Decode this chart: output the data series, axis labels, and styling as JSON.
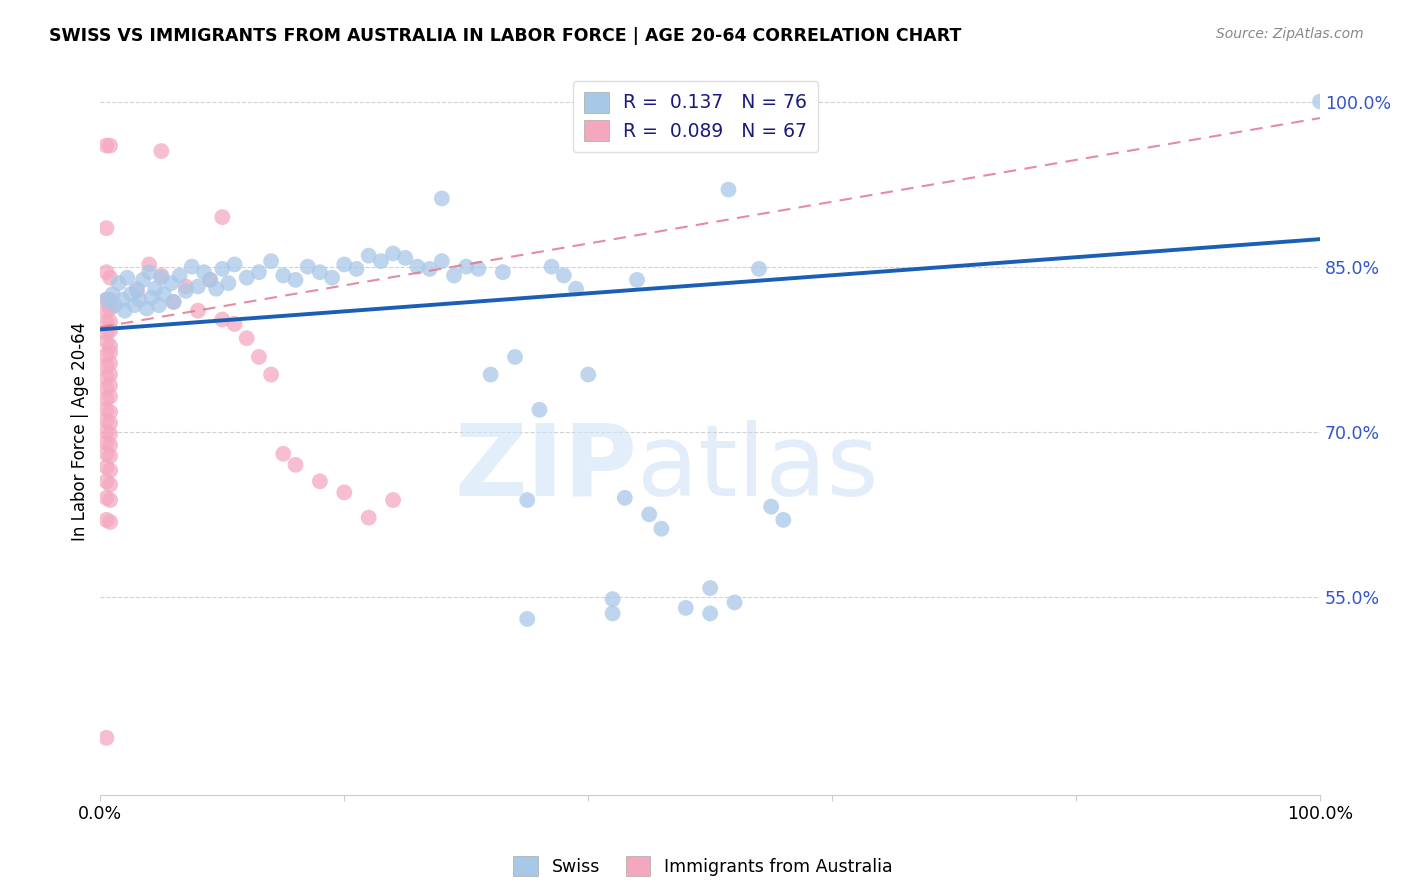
{
  "title": "SWISS VS IMMIGRANTS FROM AUSTRALIA IN LABOR FORCE | AGE 20-64 CORRELATION CHART",
  "source": "Source: ZipAtlas.com",
  "ylabel": "In Labor Force | Age 20-64",
  "xmin": 0.0,
  "xmax": 1.0,
  "ymin": 0.37,
  "ymax": 1.03,
  "ytick_vals": [
    0.55,
    0.7,
    0.85,
    1.0
  ],
  "ytick_labels": [
    "55.0%",
    "70.0%",
    "85.0%",
    "100.0%"
  ],
  "blue_color": "#a8c8e8",
  "pink_color": "#f4a8be",
  "trendline_blue": "#1a5fb4",
  "trendline_pink": "#e07890",
  "legend_R_blue": "0.137",
  "legend_N_blue": "76",
  "legend_R_pink": "0.089",
  "legend_N_pink": "67",
  "blue_trend_x0": 0.0,
  "blue_trend_y0": 0.793,
  "blue_trend_x1": 1.0,
  "blue_trend_y1": 0.875,
  "pink_trend_x0": 0.0,
  "pink_trend_y0": 0.795,
  "pink_trend_x1": 1.0,
  "pink_trend_y1": 0.985,
  "blue_scatter": [
    [
      0.005,
      0.82
    ],
    [
      0.01,
      0.825
    ],
    [
      0.012,
      0.815
    ],
    [
      0.015,
      0.835
    ],
    [
      0.018,
      0.82
    ],
    [
      0.02,
      0.81
    ],
    [
      0.022,
      0.84
    ],
    [
      0.025,
      0.825
    ],
    [
      0.028,
      0.815
    ],
    [
      0.03,
      0.83
    ],
    [
      0.032,
      0.82
    ],
    [
      0.035,
      0.838
    ],
    [
      0.038,
      0.812
    ],
    [
      0.04,
      0.845
    ],
    [
      0.042,
      0.822
    ],
    [
      0.045,
      0.83
    ],
    [
      0.048,
      0.815
    ],
    [
      0.05,
      0.84
    ],
    [
      0.052,
      0.825
    ],
    [
      0.058,
      0.835
    ],
    [
      0.06,
      0.818
    ],
    [
      0.065,
      0.842
    ],
    [
      0.07,
      0.828
    ],
    [
      0.075,
      0.85
    ],
    [
      0.08,
      0.832
    ],
    [
      0.085,
      0.845
    ],
    [
      0.09,
      0.838
    ],
    [
      0.095,
      0.83
    ],
    [
      0.1,
      0.848
    ],
    [
      0.105,
      0.835
    ],
    [
      0.11,
      0.852
    ],
    [
      0.12,
      0.84
    ],
    [
      0.13,
      0.845
    ],
    [
      0.14,
      0.855
    ],
    [
      0.15,
      0.842
    ],
    [
      0.16,
      0.838
    ],
    [
      0.17,
      0.85
    ],
    [
      0.18,
      0.845
    ],
    [
      0.19,
      0.84
    ],
    [
      0.2,
      0.852
    ],
    [
      0.21,
      0.848
    ],
    [
      0.22,
      0.86
    ],
    [
      0.23,
      0.855
    ],
    [
      0.24,
      0.862
    ],
    [
      0.25,
      0.858
    ],
    [
      0.26,
      0.85
    ],
    [
      0.27,
      0.848
    ],
    [
      0.28,
      0.855
    ],
    [
      0.29,
      0.842
    ],
    [
      0.3,
      0.85
    ],
    [
      0.31,
      0.848
    ],
    [
      0.32,
      0.752
    ],
    [
      0.33,
      0.845
    ],
    [
      0.34,
      0.768
    ],
    [
      0.35,
      0.638
    ],
    [
      0.36,
      0.72
    ],
    [
      0.37,
      0.85
    ],
    [
      0.38,
      0.842
    ],
    [
      0.39,
      0.83
    ],
    [
      0.4,
      0.752
    ],
    [
      0.42,
      0.548
    ],
    [
      0.43,
      0.64
    ],
    [
      0.44,
      0.838
    ],
    [
      0.45,
      0.625
    ],
    [
      0.46,
      0.612
    ],
    [
      0.48,
      0.54
    ],
    [
      0.5,
      0.558
    ],
    [
      0.515,
      0.92
    ],
    [
      0.54,
      0.848
    ],
    [
      0.55,
      0.632
    ],
    [
      0.56,
      0.62
    ],
    [
      0.5,
      0.535
    ],
    [
      0.35,
      0.53
    ],
    [
      0.42,
      0.535
    ],
    [
      0.52,
      0.545
    ],
    [
      1.0,
      1.0
    ],
    [
      0.28,
      0.912
    ]
  ],
  "pink_scatter": [
    [
      0.005,
      0.96
    ],
    [
      0.008,
      0.96
    ],
    [
      0.005,
      0.885
    ],
    [
      0.005,
      0.845
    ],
    [
      0.008,
      0.84
    ],
    [
      0.005,
      0.82
    ],
    [
      0.008,
      0.82
    ],
    [
      0.005,
      0.81
    ],
    [
      0.008,
      0.812
    ],
    [
      0.005,
      0.8
    ],
    [
      0.008,
      0.8
    ],
    [
      0.005,
      0.79
    ],
    [
      0.008,
      0.792
    ],
    [
      0.005,
      0.782
    ],
    [
      0.008,
      0.778
    ],
    [
      0.005,
      0.77
    ],
    [
      0.008,
      0.772
    ],
    [
      0.005,
      0.76
    ],
    [
      0.008,
      0.762
    ],
    [
      0.005,
      0.75
    ],
    [
      0.008,
      0.752
    ],
    [
      0.005,
      0.74
    ],
    [
      0.008,
      0.742
    ],
    [
      0.005,
      0.73
    ],
    [
      0.008,
      0.732
    ],
    [
      0.005,
      0.72
    ],
    [
      0.008,
      0.718
    ],
    [
      0.005,
      0.71
    ],
    [
      0.008,
      0.708
    ],
    [
      0.005,
      0.7
    ],
    [
      0.008,
      0.698
    ],
    [
      0.005,
      0.69
    ],
    [
      0.008,
      0.688
    ],
    [
      0.005,
      0.68
    ],
    [
      0.008,
      0.678
    ],
    [
      0.005,
      0.668
    ],
    [
      0.008,
      0.665
    ],
    [
      0.005,
      0.655
    ],
    [
      0.008,
      0.652
    ],
    [
      0.005,
      0.64
    ],
    [
      0.008,
      0.638
    ],
    [
      0.005,
      0.62
    ],
    [
      0.008,
      0.618
    ],
    [
      0.005,
      0.422
    ],
    [
      0.03,
      0.828
    ],
    [
      0.04,
      0.852
    ],
    [
      0.05,
      0.842
    ],
    [
      0.06,
      0.818
    ],
    [
      0.07,
      0.832
    ],
    [
      0.08,
      0.81
    ],
    [
      0.09,
      0.838
    ],
    [
      0.1,
      0.802
    ],
    [
      0.11,
      0.798
    ],
    [
      0.12,
      0.785
    ],
    [
      0.13,
      0.768
    ],
    [
      0.14,
      0.752
    ],
    [
      0.15,
      0.68
    ],
    [
      0.16,
      0.67
    ],
    [
      0.18,
      0.655
    ],
    [
      0.2,
      0.645
    ],
    [
      0.22,
      0.622
    ],
    [
      0.24,
      0.638
    ],
    [
      0.05,
      0.955
    ],
    [
      0.1,
      0.895
    ]
  ]
}
